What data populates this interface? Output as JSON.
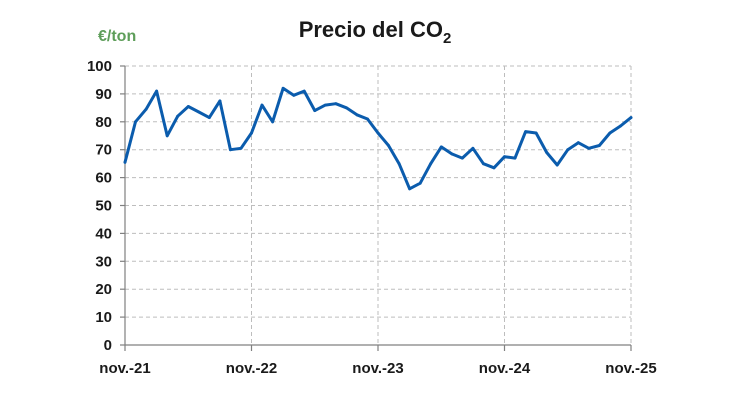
{
  "chart_data": {
    "type": "line",
    "title_main": "Precio del CO",
    "title_subscript": "2",
    "ylabel": "€/ton",
    "ylim": [
      0,
      100
    ],
    "yticks": [
      0,
      10,
      20,
      30,
      40,
      50,
      60,
      70,
      80,
      90,
      100
    ],
    "x_tick_labels": [
      "nov.-21",
      "nov.-22",
      "nov.-23",
      "nov.-24",
      "nov.-25"
    ],
    "x_tick_month_index": [
      0,
      12,
      24,
      36,
      48
    ],
    "grid": true,
    "series": [
      {
        "values": [
          65.5,
          80,
          84.5,
          91,
          75,
          82,
          85.5,
          83.5,
          81.5,
          87.5,
          70,
          70.5,
          76,
          86,
          80,
          92,
          89.5,
          91,
          84,
          86,
          86.5,
          85,
          82.5,
          81,
          76,
          71.5,
          65,
          56,
          58,
          65,
          71,
          68.5,
          67,
          70.5,
          65,
          63.5,
          67.5,
          67,
          76.5,
          76,
          69,
          64.5,
          70,
          72.5,
          70.5,
          71.5,
          76,
          78.5,
          81.5
        ]
      }
    ],
    "colors": {
      "line": "#0b5cad",
      "unit_label": "#5e9e5a",
      "grid": "#bdbdbd",
      "axis": "#808080"
    }
  }
}
